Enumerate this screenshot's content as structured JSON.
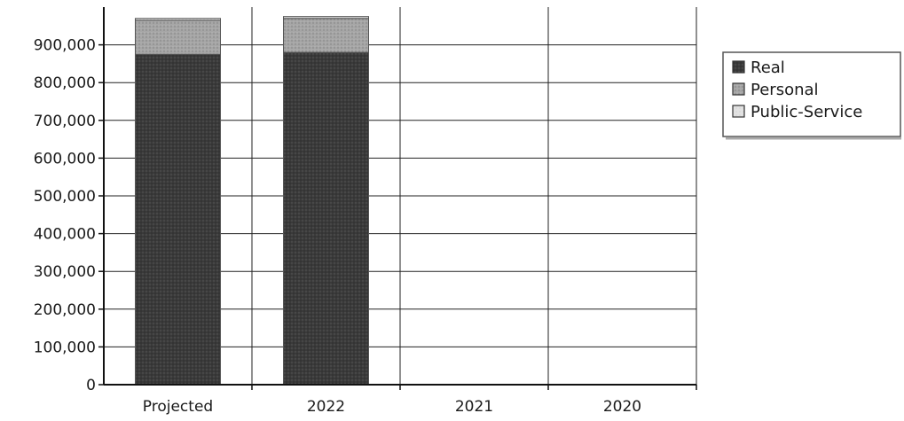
{
  "chart_data": {
    "type": "bar",
    "stacked": true,
    "categories": [
      "Projected",
      "2022",
      "2021",
      "2020"
    ],
    "series": [
      {
        "name": "Real",
        "values": [
          875000,
          880000,
          0,
          0
        ],
        "color": "#3a3a3a"
      },
      {
        "name": "Personal",
        "values": [
          90000,
          90000,
          0,
          0
        ],
        "color": "#a6a6a6"
      },
      {
        "name": "Public-Service",
        "values": [
          5000,
          5000,
          0,
          0
        ],
        "color": "#e2e2e2"
      }
    ],
    "yticks": [
      "0",
      "100,000",
      "200,000",
      "300,000",
      "400,000",
      "500,000",
      "600,000",
      "700,000",
      "800,000",
      "900,000"
    ],
    "ylim": [
      0,
      1000000
    ],
    "grid": true,
    "legend_position": "right"
  }
}
